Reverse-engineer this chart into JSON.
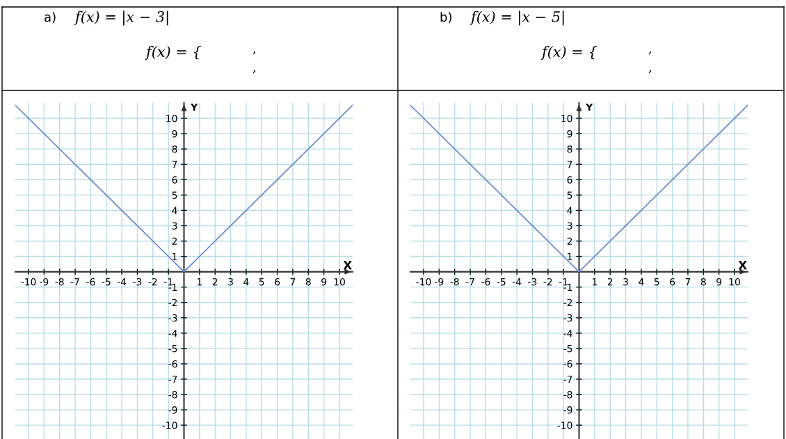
{
  "chart_data": [
    {
      "type": "line",
      "title": "a)",
      "subtitle": "f(x) = |x − 3|",
      "annotations": [
        "f(x) = {",
        ",",
        ","
      ],
      "xlabel": "X",
      "ylabel": "Y",
      "x": [
        -10.85,
        0,
        10.85
      ],
      "series": [
        {
          "color": "#6f8bd0",
          "values": [
            10.85,
            0,
            10.85
          ]
        }
      ],
      "xlim": [
        -10.85,
        10.85
      ],
      "ylim": [
        -10.9,
        11
      ],
      "xticks": [
        -10,
        -9,
        -8,
        -7,
        -6,
        -5,
        -4,
        -3,
        -2,
        -1,
        1,
        2,
        3,
        4,
        5,
        6,
        7,
        8,
        9,
        10
      ],
      "yticks": [
        -10,
        -9,
        -8,
        -7,
        -6,
        -5,
        -4,
        -3,
        -2,
        -1,
        1,
        2,
        3,
        4,
        5,
        6,
        7,
        8,
        9,
        10
      ],
      "grid": true,
      "marker": "none",
      "line_style": "solid"
    },
    {
      "type": "line",
      "title": "b)",
      "subtitle": "f(x) = |x − 5|",
      "annotations": [
        "f(x) = {",
        ",",
        ","
      ],
      "xlabel": "X",
      "ylabel": "Y",
      "x": [
        -10.85,
        0,
        10.85
      ],
      "series": [
        {
          "color": "#6f8bd0",
          "values": [
            10.85,
            0,
            10.85
          ]
        }
      ],
      "xlim": [
        -10.85,
        10.85
      ],
      "ylim": [
        -10.9,
        11
      ],
      "xticks": [
        -10,
        -9,
        -8,
        -7,
        -6,
        -5,
        -4,
        -3,
        -2,
        -1,
        1,
        2,
        3,
        4,
        5,
        6,
        7,
        8,
        9,
        10
      ],
      "yticks": [
        -10,
        -9,
        -8,
        -7,
        -6,
        -5,
        -4,
        -3,
        -2,
        -1,
        1,
        2,
        3,
        4,
        5,
        6,
        7,
        8,
        9,
        10
      ],
      "grid": true,
      "marker": "none",
      "line_style": "solid"
    }
  ]
}
